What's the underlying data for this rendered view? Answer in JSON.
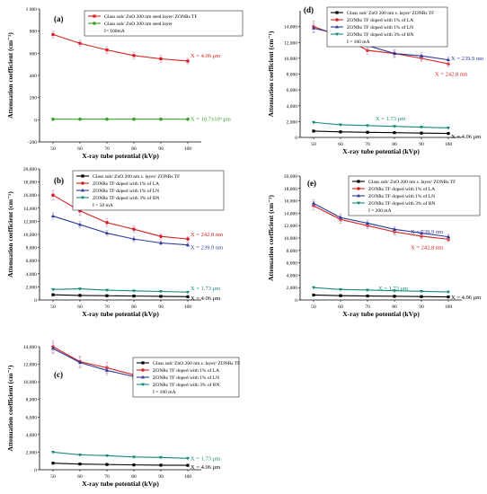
{
  "colors": {
    "black": "#000000",
    "red": "#d42020",
    "blue": "#2b3a9a",
    "teal": "#14897a",
    "green": "#3aa02a",
    "err": "#c8a0c8"
  },
  "chart_data": [
    {
      "id": "a",
      "panel_label": "(a)",
      "type": "line",
      "xlabel": "X-ray tube potential (kVp)",
      "ylabel": "Attenuation coefficient (cm⁻¹)",
      "x": [
        50,
        60,
        70,
        80,
        90,
        100
      ],
      "xlim": [
        45,
        105
      ],
      "ylim": [
        -200,
        1000
      ],
      "xticks": [
        "50",
        "60",
        "70",
        "80",
        "90",
        "100"
      ],
      "yticks": [
        -200,
        0,
        200,
        400,
        600,
        800,
        1000
      ],
      "ytick_labels": [
        "-200",
        "0",
        "200",
        "400",
        "600",
        "800",
        "1 000"
      ],
      "legend_extra": "I= 100mA",
      "series": [
        {
          "name": "Glass sub/ ZnO 200 nm seed layer/ ZONRs TF",
          "color": "#d42020",
          "values": [
            770,
            690,
            630,
            580,
            550,
            530
          ],
          "err": [
            30,
            30,
            30,
            30,
            30,
            25
          ]
        },
        {
          "name": "Glass sub/ ZnO 200 nm seed layer",
          "color": "#3aa02a",
          "values": [
            5,
            5,
            5,
            5,
            5,
            5
          ],
          "err": [
            0,
            0,
            0,
            0,
            0,
            0
          ]
        }
      ],
      "annotations": [
        {
          "text": "X = 4.06 μm",
          "color": "#d42020",
          "x": 101,
          "y": 580
        },
        {
          "text": "X = 10.7x10³ μm",
          "color": "#3aa02a",
          "x": 101,
          "y": 5
        }
      ]
    },
    {
      "id": "b",
      "panel_label": "(b)",
      "type": "line",
      "xlabel": "X-ray tube potential (kVp)",
      "ylabel": "Attenuation coefficient (cm⁻¹)",
      "x": [
        50,
        60,
        70,
        80,
        90,
        100
      ],
      "xlim": [
        45,
        105
      ],
      "ylim": [
        0,
        20000
      ],
      "xticks": [
        "50",
        "60",
        "70",
        "80",
        "90",
        "100"
      ],
      "yticks": [
        0,
        2000,
        4000,
        6000,
        8000,
        10000,
        12000,
        14000,
        16000,
        18000,
        20000
      ],
      "ytick_labels": [
        "0",
        "2,000",
        "4,000",
        "6,000",
        "8,000",
        "10,000",
        "12,000",
        "14,000",
        "16,000",
        "18,000",
        "20,000"
      ],
      "legend_extra": "I = 50 mA",
      "series": [
        {
          "name": "Glass sub/ ZnO 200 nm s. layer/ ZONRs TF",
          "color": "#000000",
          "values": [
            800,
            700,
            650,
            600,
            550,
            500
          ],
          "err": [
            0,
            0,
            0,
            0,
            0,
            0
          ]
        },
        {
          "name": "ZONRs TF doped with 1% of LA",
          "color": "#d42020",
          "values": [
            16000,
            13600,
            11800,
            10800,
            9700,
            9300
          ],
          "err": [
            700,
            700,
            600,
            500,
            400,
            400
          ]
        },
        {
          "name": "ZONRs TF doped with 1% of LN",
          "color": "#2b3a9a",
          "values": [
            12800,
            11500,
            10200,
            9300,
            8700,
            8400
          ],
          "err": [
            500,
            500,
            400,
            400,
            300,
            300
          ]
        },
        {
          "name": "ZONRs TF doped with 3% of BN",
          "color": "#14897a",
          "values": [
            1600,
            1700,
            1500,
            1400,
            1300,
            1200
          ],
          "err": [
            0,
            0,
            0,
            0,
            0,
            0
          ]
        }
      ],
      "annotations": [
        {
          "text": "X = 242.8 nm",
          "color": "#d42020",
          "x": 101,
          "y": 10000
        },
        {
          "text": "X = 239.9 nm",
          "color": "#2b3a9a",
          "x": 101,
          "y": 8000
        },
        {
          "text": "X = 1.73 μm",
          "color": "#14897a",
          "x": 101,
          "y": 1800
        },
        {
          "text": "X = 4.06 μm",
          "color": "#000000",
          "x": 101,
          "y": 300
        }
      ]
    },
    {
      "id": "c",
      "panel_label": "(c)",
      "type": "line",
      "xlabel": "X-ray tube potential (kVp)",
      "ylabel": "Attenuation coefficient (cm⁻¹)",
      "x": [
        50,
        60,
        70,
        80,
        90,
        100
      ],
      "xlim": [
        45,
        105
      ],
      "ylim": [
        0,
        14000
      ],
      "xticks": [
        "50",
        "60",
        "70",
        "80",
        "90",
        "100"
      ],
      "yticks": [
        0,
        2000,
        4000,
        6000,
        8000,
        10000,
        12000,
        14000
      ],
      "ytick_labels": [
        "0",
        "2,000",
        "4,000",
        "6,000",
        "8,000",
        "10,000",
        "12,000",
        "14,000"
      ],
      "legend_extra": "I = 100 mA",
      "series": [
        {
          "name": "Glass sub/ ZnO 200 nm s. layer/ ZONRs TF",
          "color": "#000000",
          "values": [
            750,
            650,
            600,
            550,
            520,
            500
          ],
          "err": [
            0,
            0,
            0,
            0,
            0,
            0
          ]
        },
        {
          "name": "ZONRs TF doped with 1% of LA",
          "color": "#d42020",
          "values": [
            14000,
            12300,
            11600,
            10800,
            10000,
            9400
          ],
          "err": [
            700,
            600,
            600,
            500,
            500,
            400
          ]
        },
        {
          "name": "ZONRs TF doped with 1% of LN",
          "color": "#2b3a9a",
          "values": [
            13800,
            12200,
            11300,
            10600,
            9800,
            9200
          ],
          "err": [
            600,
            600,
            500,
            500,
            400,
            400
          ]
        },
        {
          "name": "ZONRs TF doped with 3% of BN",
          "color": "#14897a",
          "values": [
            2000,
            1700,
            1600,
            1450,
            1400,
            1300
          ],
          "err": [
            0,
            0,
            0,
            0,
            0,
            0
          ]
        }
      ],
      "annotations": [
        {
          "text": "X = 242.8 nm",
          "color": "#d42020",
          "x": 101,
          "y": 10400
        },
        {
          "text": "X = 239.9 nm",
          "color": "#2b3a9a",
          "x": 101,
          "y": 8700
        },
        {
          "text": "X = 1.73 μm",
          "color": "#14897a",
          "x": 101,
          "y": 1300
        },
        {
          "text": "X = 4.06 μm",
          "color": "#000000",
          "x": 101,
          "y": 300
        }
      ]
    },
    {
      "id": "d",
      "panel_label": "(d)",
      "type": "line",
      "xlabel": "X-ray tube potential (kVp)",
      "ylabel": "Attenuation coefficient (cm⁻¹)",
      "x": [
        50,
        60,
        70,
        80,
        90,
        100
      ],
      "xlim": [
        45,
        105
      ],
      "ylim": [
        0,
        16000
      ],
      "xticks": [
        "50",
        "60",
        "70",
        "80",
        "90",
        "100"
      ],
      "yticks": [
        0,
        2000,
        4000,
        6000,
        8000,
        10000,
        12000,
        14000
      ],
      "ytick_labels": [
        "0",
        "2,000",
        "4,000",
        "6,000",
        "8,000",
        "10,000",
        "12,000",
        "14,000"
      ],
      "legend_extra": "I = 160 mA",
      "series": [
        {
          "name": "Glass sub/ ZnO 200 nm s. layer/ ZONRs TF",
          "color": "#000000",
          "values": [
            800,
            700,
            650,
            600,
            550,
            500
          ],
          "err": [
            0,
            0,
            0,
            0,
            0,
            0
          ]
        },
        {
          "name": "ZONRs TF doped with 1% of LA",
          "color": "#d42020",
          "values": [
            14000,
            12800,
            11000,
            10600,
            10000,
            9300
          ],
          "err": [
            700,
            600,
            500,
            500,
            400,
            400
          ]
        },
        {
          "name": "ZONRs TF doped with 1% of LN",
          "color": "#2b3a9a",
          "values": [
            13800,
            13000,
            11600,
            10600,
            10300,
            9800
          ],
          "err": [
            600,
            600,
            500,
            400,
            400,
            400
          ]
        },
        {
          "name": "ZONRs TF doped with 3% of BN",
          "color": "#14897a",
          "values": [
            1900,
            1600,
            1500,
            1400,
            1300,
            1200
          ],
          "err": [
            0,
            0,
            0,
            0,
            0,
            0
          ]
        }
      ],
      "annotations": [
        {
          "text": "X = 239.9 nm",
          "color": "#2b3a9a",
          "x": 101,
          "y": 10000
        },
        {
          "text": "X = 242.8 nm",
          "color": "#d42020",
          "x": 95,
          "y": 8000
        },
        {
          "text": "X = 1.73 μm",
          "color": "#14897a",
          "x": 73,
          "y": 2400
        },
        {
          "text": "X = 4.06 μm",
          "color": "#000000",
          "x": 101,
          "y": 100
        }
      ]
    },
    {
      "id": "e",
      "panel_label": "(e)",
      "type": "line",
      "xlabel": "X-ray tube potential (kVp)",
      "ylabel": "Attenuation coefficient (cm⁻¹)",
      "x": [
        50,
        60,
        70,
        80,
        90,
        100
      ],
      "xlim": [
        45,
        105
      ],
      "ylim": [
        0,
        20000
      ],
      "xticks": [
        "50",
        "60",
        "70",
        "80",
        "90",
        "100"
      ],
      "yticks": [
        0,
        2000,
        4000,
        6000,
        8000,
        10000,
        12000,
        14000,
        16000,
        18000,
        20000
      ],
      "ytick_labels": [
        "0",
        "2,000",
        "4,000",
        "6,000",
        "8,000",
        "10,000",
        "12,000",
        "14,000",
        "16,000",
        "18,000",
        "20,000"
      ],
      "legend_extra": "I = 200 mA",
      "series": [
        {
          "name": "Glass sub/ ZnO 200 nm s. layer/ ZONRs TF",
          "color": "#000000",
          "values": [
            800,
            700,
            650,
            600,
            550,
            500
          ],
          "err": [
            0,
            0,
            0,
            0,
            0,
            0
          ]
        },
        {
          "name": "ZONRs TF doped with 1% of LA",
          "color": "#d42020",
          "values": [
            15200,
            13000,
            12000,
            11000,
            10300,
            9800
          ],
          "err": [
            700,
            600,
            500,
            500,
            400,
            400
          ]
        },
        {
          "name": "ZONRs TF doped with 1% of LN",
          "color": "#2b3a9a",
          "values": [
            15600,
            13300,
            12400,
            11400,
            10800,
            10200
          ],
          "err": [
            600,
            600,
            500,
            400,
            400,
            400
          ]
        },
        {
          "name": "ZONRs TF doped with 3% of BN",
          "color": "#14897a",
          "values": [
            2000,
            1700,
            1600,
            1500,
            1400,
            1300
          ],
          "err": [
            0,
            0,
            0,
            0,
            0,
            0
          ]
        }
      ],
      "annotations": [
        {
          "text": "X = 239.9 nm",
          "color": "#2b3a9a",
          "x": 86,
          "y": 11000
        },
        {
          "text": "X = 242.8 nm",
          "color": "#d42020",
          "x": 86,
          "y": 8500
        },
        {
          "text": "X = 1.73 μm",
          "color": "#14897a",
          "x": 74,
          "y": 1900
        },
        {
          "text": "X = 4.06 μm",
          "color": "#000000",
          "x": 101,
          "y": 400
        }
      ]
    }
  ]
}
